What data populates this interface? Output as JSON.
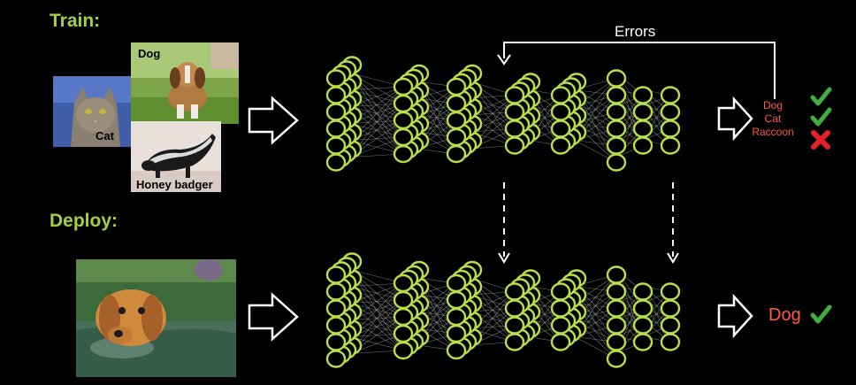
{
  "train": {
    "label": "Train:",
    "images": [
      {
        "caption": "Dog"
      },
      {
        "caption": "Cat"
      },
      {
        "caption": "Honey badger"
      }
    ],
    "outputs": [
      "Dog",
      "Cat",
      "Raccoon"
    ],
    "results": [
      "check-icon",
      "check-icon",
      "cross-icon"
    ],
    "errors_label": "Errors"
  },
  "deploy": {
    "label": "Deploy:",
    "output": "Dog",
    "result": "check-icon"
  },
  "colors": {
    "label_green": "#a6cf3e",
    "neuron_green": "#b9e04a",
    "output_red": "#ff5a3c",
    "check_green": "#3fae3f",
    "cross_red": "#e8202a"
  }
}
